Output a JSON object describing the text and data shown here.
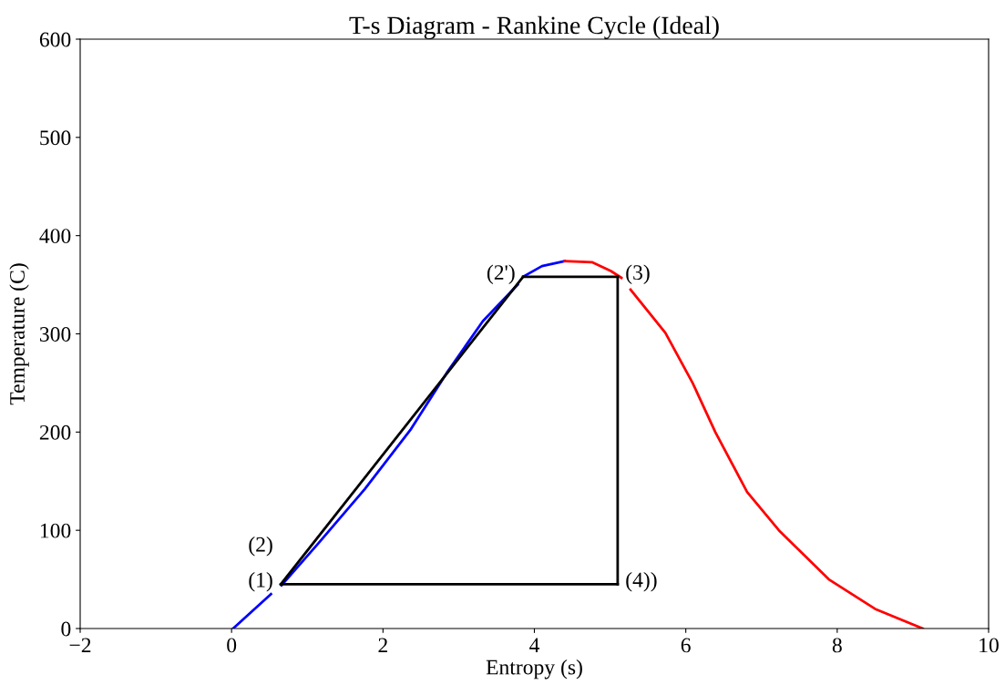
{
  "chart_data": {
    "type": "line",
    "title": "T-s Diagram - Rankine Cycle (Ideal)",
    "xlabel": "Entropy (s)",
    "ylabel": "Temperature (C)",
    "xlim": [
      -2,
      10
    ],
    "xticks": [
      {
        "value": -2,
        "label": "−2"
      },
      0,
      2,
      4,
      6,
      8,
      10
    ],
    "ylim": [
      0,
      600
    ],
    "yticks": [
      0,
      100,
      200,
      300,
      400,
      500,
      600
    ],
    "grid": false,
    "legend": false,
    "marker": "none",
    "line_style": "solid",
    "series": [
      {
        "color": "#0000ff",
        "x": [
          0.02,
          0.52,
          0.59,
          0.66,
          1.15,
          1.76,
          2.36,
          2.84,
          3.32,
          3.78,
          3.83,
          3.87,
          4.1,
          4.4
        ],
        "values": [
          0,
          35,
          null,
          44,
          87,
          142,
          202,
          260,
          313,
          350,
          null,
          359,
          369,
          374
        ]
      },
      {
        "color": "#ff0000",
        "x": [
          4.4,
          4.76,
          5.01,
          5.15,
          5.21,
          5.27,
          5.73,
          6.09,
          6.39,
          6.81,
          7.23,
          7.89,
          8.5,
          9.13
        ],
        "values": [
          374,
          373,
          364,
          357,
          null,
          345,
          301,
          250,
          200,
          139,
          100,
          50,
          20,
          0
        ]
      },
      {
        "color": "#000000",
        "x": [
          0.65,
          3.85
        ],
        "values": [
          45,
          358
        ]
      },
      {
        "color": "#000000",
        "x": [
          3.85,
          5.1
        ],
        "values": [
          358,
          358
        ]
      },
      {
        "color": "#000000",
        "x": [
          5.1,
          5.1
        ],
        "values": [
          358,
          45
        ]
      },
      {
        "color": "#000000",
        "x": [
          0.65,
          5.1
        ],
        "values": [
          45,
          45
        ]
      }
    ],
    "annotations": [
      {
        "text": "(1)",
        "x": 0.65,
        "y": 45
      },
      {
        "text": "(2)",
        "x": 0.65,
        "y": 45
      },
      {
        "text": "(2')",
        "x": 3.85,
        "y": 358
      },
      {
        "text": "(3)",
        "x": 5.1,
        "y": 358
      },
      {
        "text": "(4))",
        "x": 5.1,
        "y": 45
      }
    ]
  }
}
